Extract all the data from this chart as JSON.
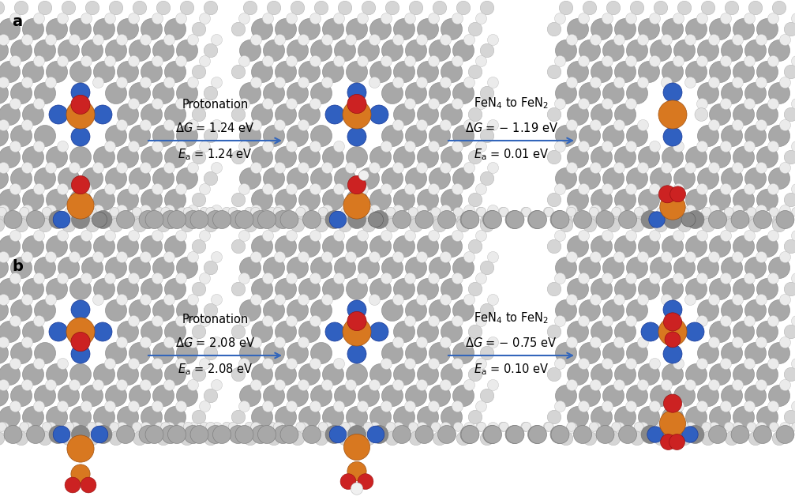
{
  "fig_width": 10.07,
  "fig_height": 6.38,
  "dpi": 100,
  "background_color": "#ffffff",
  "gray": "#a8a8a8",
  "gray_light": "#c8c8c8",
  "gray_dark": "#888888",
  "blue": "#3060c0",
  "orange": "#d87820",
  "red": "#cc2222",
  "white_outline": "#cccccc",
  "arrow_color": "#3366bb",
  "panel_a_label": "a",
  "panel_b_label": "b",
  "row_a": {
    "prot_title": "Protonation",
    "prot_dG": "$\\Delta G$ = 1.24 eV",
    "prot_Ea": "$E_{\\mathrm{a}}$ = 1.24 eV",
    "trans_title": "FeN$_4$ to FeN$_2$",
    "trans_dG": "$\\Delta G$ = − 1.19 eV",
    "trans_Ea": "$E_{\\mathrm{a}}$ = 0.01 eV"
  },
  "row_b": {
    "prot_title": "Protonation",
    "prot_dG": "$\\Delta G$ = 2.08 eV",
    "prot_Ea": "$E_{\\mathrm{a}}$ = 2.08 eV",
    "trans_title": "FeN$_4$ to FeN$_2$",
    "trans_dG": "$\\Delta G$ = − 0.75 eV",
    "trans_Ea": "$E_{\\mathrm{a}}$ = 0.10 eV"
  }
}
